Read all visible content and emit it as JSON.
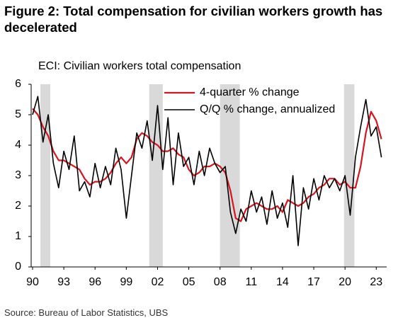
{
  "chart_data": {
    "type": "line",
    "title": "Figure 2: Total compensation for civilian workers growth has decelerated",
    "subtitle": "ECI: Civilian workers total compensation",
    "source": "Source: Bureau of Labor Statistics, UBS",
    "x": [
      1990.0,
      1990.5,
      1991.0,
      1991.5,
      1992.0,
      1992.5,
      1993.0,
      1993.5,
      1994.0,
      1994.5,
      1995.0,
      1995.5,
      1996.0,
      1996.5,
      1997.0,
      1997.5,
      1998.0,
      1998.5,
      1999.0,
      1999.5,
      2000.0,
      2000.5,
      2001.0,
      2001.5,
      2002.0,
      2002.5,
      2003.0,
      2003.5,
      2004.0,
      2004.5,
      2005.0,
      2005.5,
      2006.0,
      2006.5,
      2007.0,
      2007.5,
      2008.0,
      2008.5,
      2009.0,
      2009.5,
      2010.0,
      2010.5,
      2011.0,
      2011.5,
      2012.0,
      2012.5,
      2013.0,
      2013.5,
      2014.0,
      2014.5,
      2015.0,
      2015.5,
      2016.0,
      2016.5,
      2017.0,
      2017.5,
      2018.0,
      2018.5,
      2019.0,
      2019.5,
      2020.0,
      2020.5,
      2021.0,
      2021.5,
      2022.0,
      2022.5,
      2023.0,
      2023.5
    ],
    "series": [
      {
        "name": "4-quarter % change",
        "color": "#d9141e",
        "width": 2.2,
        "values": [
          5.2,
          5.0,
          4.6,
          4.3,
          3.8,
          3.5,
          3.5,
          3.4,
          3.3,
          3.2,
          2.9,
          2.7,
          2.8,
          2.8,
          2.9,
          3.1,
          3.4,
          3.6,
          3.4,
          3.6,
          4.2,
          4.4,
          4.3,
          4.1,
          4.0,
          3.8,
          3.8,
          3.9,
          3.7,
          3.6,
          3.2,
          3.0,
          3.1,
          3.3,
          3.3,
          3.4,
          3.3,
          3.1,
          2.5,
          1.6,
          1.5,
          1.9,
          2.0,
          2.1,
          2.0,
          1.9,
          1.9,
          2.0,
          1.8,
          2.2,
          2.1,
          2.0,
          2.1,
          2.3,
          2.4,
          2.6,
          2.7,
          2.9,
          2.9,
          2.7,
          2.8,
          2.6,
          2.6,
          3.3,
          4.4,
          5.1,
          4.8,
          4.2
        ]
      },
      {
        "name": "Q/Q % change, annualized",
        "color": "#000000",
        "width": 1.6,
        "values": [
          5.0,
          5.6,
          4.1,
          5.0,
          3.4,
          2.6,
          3.8,
          3.2,
          4.3,
          2.5,
          2.8,
          2.3,
          3.4,
          2.6,
          3.3,
          2.7,
          3.9,
          3.2,
          1.6,
          3.0,
          4.4,
          3.9,
          4.8,
          3.5,
          5.3,
          3.2,
          4.9,
          2.7,
          4.4,
          3.3,
          3.6,
          2.7,
          3.8,
          3.0,
          3.9,
          3.4,
          3.1,
          3.3,
          1.8,
          1.1,
          1.9,
          1.5,
          2.5,
          1.8,
          2.3,
          1.4,
          2.5,
          1.6,
          2.1,
          1.3,
          3.0,
          0.7,
          2.6,
          1.9,
          2.9,
          2.2,
          3.0,
          2.6,
          2.9,
          2.5,
          3.0,
          1.7,
          3.6,
          4.6,
          5.5,
          4.3,
          4.6,
          3.6
        ]
      }
    ],
    "recessions": [
      [
        1990.75,
        1991.7
      ],
      [
        2001.2,
        2002.5
      ],
      [
        2008.0,
        2009.9
      ],
      [
        2019.9,
        2020.9
      ]
    ],
    "recession_color": "#d9d9d9",
    "xlim": [
      1990,
      2024
    ],
    "xticks": [
      {
        "value": 1990,
        "label": "90"
      },
      {
        "value": 1993,
        "label": "93"
      },
      {
        "value": 1996,
        "label": "96"
      },
      {
        "value": 1999,
        "label": "99"
      },
      {
        "value": 2002,
        "label": "02"
      },
      {
        "value": 2005,
        "label": "05"
      },
      {
        "value": 2008,
        "label": "08"
      },
      {
        "value": 2011,
        "label": "11"
      },
      {
        "value": 2014,
        "label": "14"
      },
      {
        "value": 2017,
        "label": "17"
      },
      {
        "value": 2020,
        "label": "20"
      },
      {
        "value": 2023,
        "label": "23"
      }
    ],
    "ylim": [
      0,
      6
    ],
    "yticks": [
      0,
      1,
      2,
      3,
      4,
      5,
      6
    ],
    "grid": false,
    "legend": "top"
  }
}
